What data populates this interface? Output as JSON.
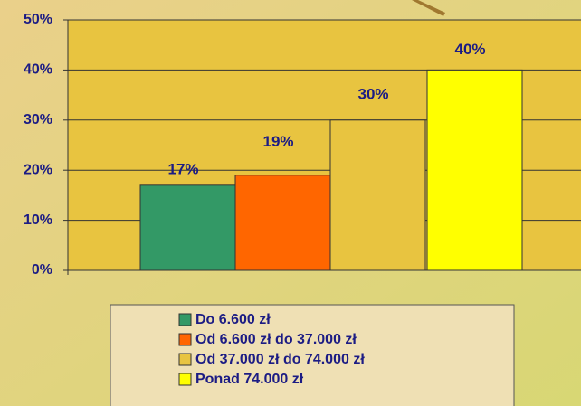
{
  "chart_data": {
    "type": "bar",
    "series": [
      {
        "name": "Do 6.600 zł",
        "color": "#339966",
        "values": [
          17
        ],
        "value_labels": [
          "17%"
        ]
      },
      {
        "name": "Od 6.600 zł do 37.000 zł",
        "color": "#ff6600",
        "values": [
          19
        ],
        "value_labels": [
          "19%"
        ]
      },
      {
        "name": "Od 37.000 zł do 74.000 zł",
        "color": "#e8c440",
        "values": [
          30
        ],
        "value_labels": [
          "30%"
        ]
      },
      {
        "name": "Ponad 74.000 zł",
        "color": "#ffff00",
        "values": [
          40
        ],
        "value_labels": [
          "40%"
        ]
      }
    ],
    "ylim": [
      0,
      50
    ],
    "yticks": [
      {
        "value": 0,
        "label": "0%"
      },
      {
        "value": 10,
        "label": "10%"
      },
      {
        "value": 20,
        "label": "20%"
      },
      {
        "value": 30,
        "label": "30%"
      },
      {
        "value": 40,
        "label": "40%"
      },
      {
        "value": 50,
        "label": "50%"
      }
    ],
    "grid": true,
    "legend": "bottom"
  }
}
